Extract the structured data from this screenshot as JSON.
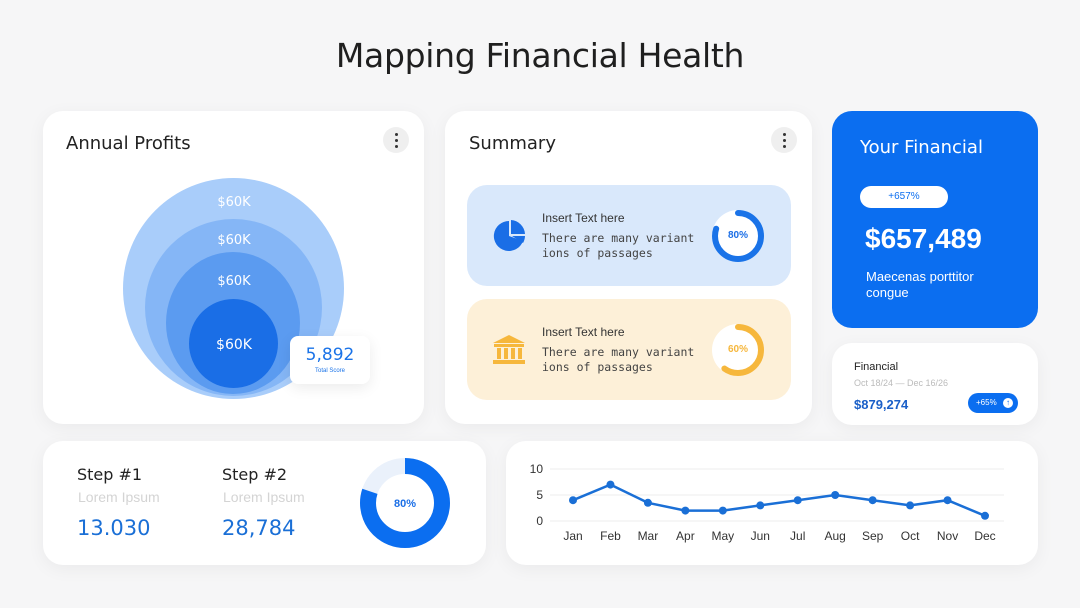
{
  "page": {
    "title": "Mapping Financial Health"
  },
  "annual_profits": {
    "title": "Annual Profits",
    "rings": [
      "$60K",
      "$60K",
      "$60K",
      "$60K"
    ],
    "score": {
      "value": "5,892",
      "label": "Total Score"
    }
  },
  "summary": {
    "title": "Summary",
    "items": [
      {
        "heading": "Insert Text here",
        "text": "There are many variant ions of passages",
        "percent_label": "80%",
        "percent": 80,
        "icon": "pie-chart-icon",
        "color": "#1a73e8"
      },
      {
        "heading": "Insert Text here",
        "text": "There are many variant ions of passages",
        "percent_label": "60%",
        "percent": 60,
        "icon": "bank-icon",
        "color": "#f6b73c"
      }
    ]
  },
  "your_financial": {
    "title": "Your Financial",
    "badge": "+657%",
    "amount": "$657,489",
    "description": "Maecenas porttitor congue"
  },
  "financial": {
    "label": "Financial",
    "date_range": "Oct 18/24 — Dec 16/26",
    "amount": "$879,274",
    "badge": "+65%"
  },
  "steps": [
    {
      "title": "Step #1",
      "subtitle": "Lorem Ipsum",
      "value": "13.030"
    },
    {
      "title": "Step #2",
      "subtitle": "Lorem Ipsum",
      "value": "28,784"
    }
  ],
  "donut": {
    "label": "80%",
    "percent": 80,
    "color": "#0b6ef0"
  },
  "chart_data": {
    "type": "line",
    "categories": [
      "Jan",
      "Feb",
      "Mar",
      "Apr",
      "May",
      "Jun",
      "Jul",
      "Aug",
      "Sep",
      "Oct",
      "Nov",
      "Dec"
    ],
    "values": [
      4,
      7,
      3.5,
      2,
      2,
      3,
      4,
      5,
      4,
      3,
      4,
      1
    ],
    "yticks": [
      0,
      5,
      10
    ],
    "ylim": [
      0,
      10
    ],
    "color": "#1a6fd6",
    "grid": true
  }
}
